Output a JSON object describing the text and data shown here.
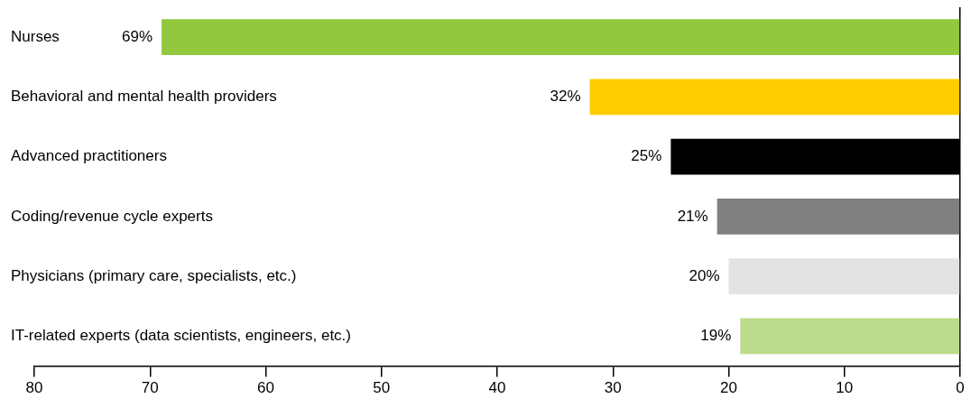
{
  "chart_data": {
    "type": "bar",
    "orientation": "horizontal",
    "categories": [
      "Nurses",
      "Behavioral and mental health providers",
      "Advanced practitioners",
      "Coding/revenue cycle experts",
      "Physicians (primary care, specialists, etc.)",
      "IT-related experts (data scientists, engineers, etc.)"
    ],
    "values": [
      69,
      32,
      25,
      21,
      20,
      19
    ],
    "colors": [
      "#92c83e",
      "#ffcc00",
      "#000000",
      "#808080",
      "#e3e3e3",
      "#bddb8c"
    ],
    "value_labels": [
      "69%",
      "32%",
      "25%",
      "21%",
      "20%",
      "19%"
    ],
    "xlim": [
      80,
      0
    ],
    "xticks": [
      80,
      70,
      60,
      50,
      40,
      30,
      20,
      10,
      0
    ],
    "grid": false,
    "legend": false
  }
}
